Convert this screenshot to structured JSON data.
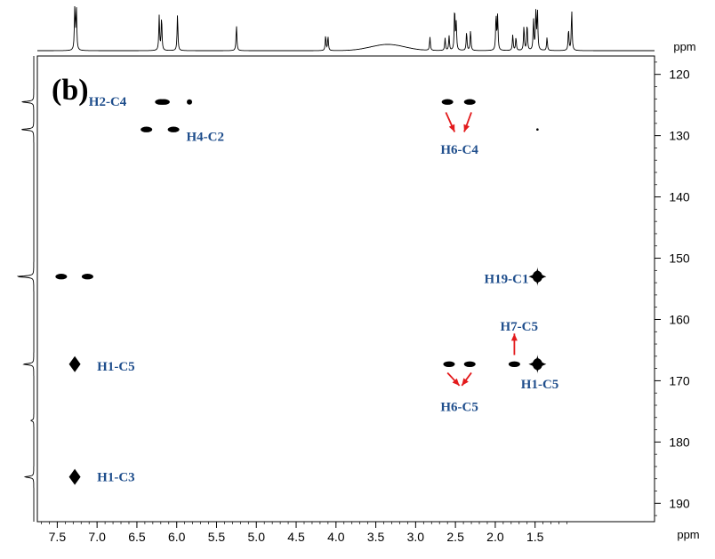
{
  "chart_data": {
    "type": "scatter",
    "title": "",
    "panel_label": "(b)",
    "x_unit": "ppm",
    "y_unit": "ppm",
    "xlim": [
      7.75,
      0.0
    ],
    "ylim": [
      117,
      193
    ],
    "x_reversed": true,
    "x_ticks": [
      "7.5",
      "7.0",
      "6.5",
      "6.0",
      "5.5",
      "5.0",
      "4.5",
      "4.0",
      "3.5",
      "3.0",
      "2.5",
      "2.0",
      "1.5"
    ],
    "y_ticks": [
      "120",
      "130",
      "140",
      "150",
      "160",
      "170",
      "180",
      "190"
    ],
    "grid": false,
    "cross_peaks": [
      {
        "x": 6.2,
        "y": 124.5,
        "shape": "blob"
      },
      {
        "x": 6.16,
        "y": 124.5,
        "shape": "blob"
      },
      {
        "x": 5.84,
        "y": 124.5,
        "shape": "dot"
      },
      {
        "x": 2.6,
        "y": 124.5,
        "shape": "blob"
      },
      {
        "x": 2.32,
        "y": 124.5,
        "shape": "blob"
      },
      {
        "x": 6.38,
        "y": 129.0,
        "shape": "blob"
      },
      {
        "x": 6.04,
        "y": 129.0,
        "shape": "blob"
      },
      {
        "x": 1.47,
        "y": 129.0,
        "shape": "tiny"
      },
      {
        "x": 7.45,
        "y": 153.0,
        "shape": "blob"
      },
      {
        "x": 7.12,
        "y": 153.0,
        "shape": "blob"
      },
      {
        "x": 1.47,
        "y": 153.0,
        "shape": "cross"
      },
      {
        "x": 7.28,
        "y": 167.3,
        "shape": "diamond"
      },
      {
        "x": 2.58,
        "y": 167.3,
        "shape": "blob"
      },
      {
        "x": 2.32,
        "y": 167.3,
        "shape": "blob"
      },
      {
        "x": 1.76,
        "y": 167.3,
        "shape": "blob"
      },
      {
        "x": 1.47,
        "y": 167.3,
        "shape": "cross"
      },
      {
        "x": 7.28,
        "y": 185.7,
        "shape": "diamond"
      }
    ],
    "annotations": [
      {
        "text": "H2-C4",
        "x": 6.63,
        "y": 124.4,
        "anchor": "end"
      },
      {
        "text": "H4-C2",
        "x": 5.88,
        "y": 130.1,
        "anchor": "start"
      },
      {
        "text": "H6-C4",
        "x": 2.45,
        "y": 132.2,
        "anchor": "middle"
      },
      {
        "text": "H19-C1",
        "x": 1.58,
        "y": 153.3,
        "anchor": "end"
      },
      {
        "text": "H7-C5",
        "x": 1.7,
        "y": 161.1,
        "anchor": "middle"
      },
      {
        "text": "H1-C5",
        "x": 7.0,
        "y": 167.6,
        "anchor": "start"
      },
      {
        "text": "H1-C5",
        "x": 1.44,
        "y": 170.5,
        "anchor": "middle"
      },
      {
        "text": "H6-C5",
        "x": 2.45,
        "y": 174.2,
        "anchor": "middle"
      },
      {
        "text": "H1-C3",
        "x": 7.0,
        "y": 185.7,
        "anchor": "start"
      }
    ],
    "arrows": [
      {
        "from": [
          2.62,
          126.2
        ],
        "to": [
          2.51,
          129.4
        ]
      },
      {
        "from": [
          2.3,
          126.2
        ],
        "to": [
          2.39,
          129.4
        ]
      },
      {
        "from": [
          2.6,
          168.7
        ],
        "to": [
          2.45,
          170.8
        ]
      },
      {
        "from": [
          2.3,
          168.7
        ],
        "to": [
          2.42,
          170.8
        ]
      },
      {
        "from": [
          1.76,
          165.8
        ],
        "to": [
          1.76,
          162.3
        ]
      }
    ],
    "top_projection_peaks": [
      {
        "x": 7.28,
        "h": 1.0
      },
      {
        "x": 7.26,
        "h": 0.95
      },
      {
        "x": 6.22,
        "h": 0.78
      },
      {
        "x": 6.19,
        "h": 0.75
      },
      {
        "x": 5.99,
        "h": 0.82
      },
      {
        "x": 5.25,
        "h": 0.58
      },
      {
        "x": 4.13,
        "h": 0.34
      },
      {
        "x": 4.1,
        "h": 0.32
      },
      {
        "x": 2.82,
        "h": 0.3
      },
      {
        "x": 2.63,
        "h": 0.28
      },
      {
        "x": 2.58,
        "h": 0.33
      },
      {
        "x": 2.51,
        "h": 0.95
      },
      {
        "x": 2.49,
        "h": 0.6
      },
      {
        "x": 2.36,
        "h": 0.42
      },
      {
        "x": 2.31,
        "h": 0.46
      },
      {
        "x": 1.99,
        "h": 0.8
      },
      {
        "x": 1.97,
        "h": 0.78
      },
      {
        "x": 1.78,
        "h": 0.36
      },
      {
        "x": 1.74,
        "h": 0.3
      },
      {
        "x": 1.64,
        "h": 0.55
      },
      {
        "x": 1.6,
        "h": 0.6
      },
      {
        "x": 1.52,
        "h": 0.7
      },
      {
        "x": 1.49,
        "h": 0.85
      },
      {
        "x": 1.47,
        "h": 0.9
      },
      {
        "x": 1.35,
        "h": 0.3
      },
      {
        "x": 1.08,
        "h": 0.48
      },
      {
        "x": 1.04,
        "h": 0.92
      }
    ],
    "top_projection_humps": [
      {
        "x": 3.35,
        "w": 0.3,
        "h": 0.14
      }
    ],
    "left_projection_peaks": [
      {
        "y": 124.5,
        "h": 0.4
      },
      {
        "y": 129.0,
        "h": 0.42
      },
      {
        "y": 153.0,
        "h": 0.55
      },
      {
        "y": 167.3,
        "h": 0.35
      },
      {
        "y": 176.5,
        "h": 0.1
      },
      {
        "y": 185.7,
        "h": 0.3
      }
    ]
  }
}
